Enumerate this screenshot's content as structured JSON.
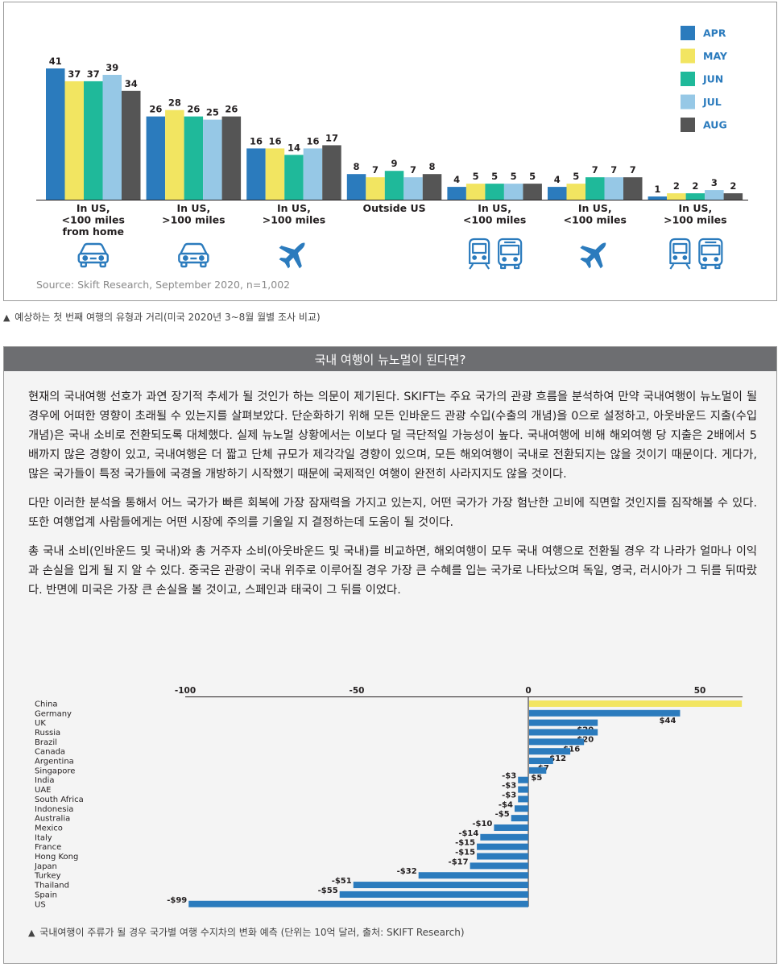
{
  "chart1": {
    "chart_data": {
      "type": "bar",
      "categories": [
        [
          "In US,",
          "<100 miles",
          "from home"
        ],
        [
          "In US,",
          ">100 miles"
        ],
        [
          "In US,",
          ">100 miles"
        ],
        [
          "Outside US"
        ],
        [
          "In US,",
          "<100 miles"
        ],
        [
          "In US,",
          "<100 miles"
        ],
        [
          "In US,",
          ">100 miles"
        ]
      ],
      "category_icons": [
        [
          "car-icon"
        ],
        [
          "car-icon"
        ],
        [
          "airplane-icon"
        ],
        [],
        [
          "train-icon",
          "bus-icon"
        ],
        [
          "airplane-icon"
        ],
        [
          "train-icon",
          "bus-icon"
        ]
      ],
      "series": [
        {
          "name": "APR",
          "color": "#2b7bbd",
          "values": [
            41,
            26,
            16,
            8,
            4,
            4,
            1
          ]
        },
        {
          "name": "MAY",
          "color": "#f2e561",
          "values": [
            37,
            28,
            16,
            7,
            5,
            5,
            2
          ]
        },
        {
          "name": "JUN",
          "color": "#1fb99a",
          "values": [
            37,
            26,
            14,
            9,
            5,
            7,
            2
          ]
        },
        {
          "name": "JUL",
          "color": "#96c8e6",
          "values": [
            39,
            25,
            16,
            7,
            5,
            7,
            3
          ]
        },
        {
          "name": "AUG",
          "color": "#555555",
          "values": [
            34,
            26,
            17,
            8,
            5,
            7,
            2
          ]
        }
      ],
      "ylim": [
        0,
        41
      ],
      "legend_position": "top-right",
      "icon_color": "#2b7bbd"
    },
    "source": "Source: Skift Research, September 2020, n=1,002",
    "caption": "예상하는 첫 번째 여행의 유형과 거리(미국 2020년 3~8월 월별 조사 비교)"
  },
  "section": {
    "header": "국내 여행이 뉴노멀이 된다면?",
    "paragraphs": [
      "현재의 국내여행 선호가 과연 장기적 추세가 될 것인가 하는 의문이 제기된다. SKIFT는 주요 국가의 관광 흐름을 분석하여 만약 국내여행이 뉴노멀이 될 경우에 어떠한 영향이 초래될 수 있는지를 살펴보았다. 단순화하기 위해 모든 인바운드 관광 수입(수출의 개념)을 0으로 설정하고, 아웃바운드 지출(수입 개념)은 국내 소비로 전환되도록 대체했다. 실제 뉴노멀 상황에서는 이보다 덜 극단적일 가능성이 높다. 국내여행에 비해 해외여행 당 지출은 2배에서 5배까지 많은 경향이 있고, 국내여행은 더 짧고 단체 규모가 제각각일 경향이 있으며, 모든 해외여행이 국내로 전환되지는 않을 것이기 때문이다. 게다가, 많은 국가들이 특정 국가들에 국경을 개방하기 시작했기 때문에 국제적인 여행이 완전히 사라지지도 않을 것이다.",
      "다만 이러한 분석을 통해서 어느 국가가 빠른 회복에 가장 잠재력을 가지고 있는지, 어떤 국가가 가장 험난한 고비에 직면할 것인지를 짐작해볼 수 있다. 또한 여행업계 사람들에게는 어떤 시장에 주의를 기울일 지 결정하는데 도움이 될 것이다.",
      "총 국내 소비(인바운드 및 국내)와 총 거주자 소비(아웃바운드 및 국내)를 비교하면, 해외여행이 모두 국내 여행으로 전환될 경우 각 나라가 얼마나 이익과 손실을 입게 될 지 알 수 있다. 중국은 관광이 국내 위주로 이루어질 경우 가장 큰 수혜를 입는 국가로 나타났으며 독일, 영국, 러시아가 그 뒤를 뒤따랐다. 반면에 미국은 가장 큰 손실을 볼 것이고, 스페인과 태국이 그 뒤를 이었다."
    ],
    "chart2": {
      "chart_data": {
        "type": "bar",
        "orientation": "horizontal",
        "categories": [
          "China",
          "Germany",
          "UK",
          "Russia",
          "Brazil",
          "Canada",
          "Argentina",
          "Singapore",
          "India",
          "UAE",
          "South Africa",
          "Indonesia",
          "Australia",
          "Mexico",
          "Italy",
          "France",
          "Hong Kong",
          "Japan",
          "Turkey",
          "Thailand",
          "Spain",
          "US"
        ],
        "values": [
          62,
          44,
          20,
          20,
          16,
          12,
          7,
          5,
          -3,
          -3,
          -3,
          -4,
          -5,
          -10,
          -14,
          -15,
          -15,
          -17,
          -32,
          -51,
          -55,
          -99
        ],
        "data_labels": [
          "",
          "$44",
          "$20",
          "$20",
          "$16",
          "$12",
          "$7",
          "$5",
          "-$3",
          "-$3",
          "-$3",
          "-$4",
          "-$5",
          "-$10",
          "-$14",
          "-$15",
          "-$15",
          "-$17",
          "-$32",
          "-$51",
          "-$55",
          "-$99"
        ],
        "xticks": [
          -100,
          -50,
          0,
          50
        ],
        "xlim": [
          -100,
          62
        ],
        "highlight_color": "#f2e561",
        "bar_color": "#2b7bbd"
      },
      "caption": "국내여행이 주류가 될 경우 국가별 여행 수지차의 변화 예측 (단위는 10억 달러, 출처: SKIFT Research)"
    }
  }
}
